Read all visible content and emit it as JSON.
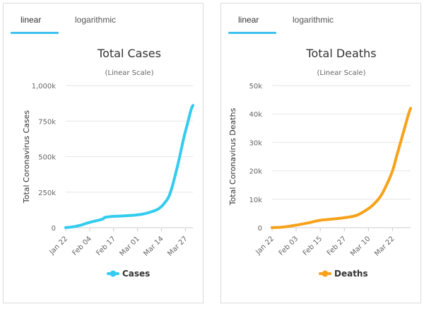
{
  "tabs": {
    "linear": "linear",
    "logarithmic": "logarithmic"
  },
  "chart_data": [
    {
      "type": "line",
      "title": "Total Cases",
      "subtitle": "(Linear Scale)",
      "ylabel": "Total Coronavirus Cases",
      "xlabel": "",
      "ylim": [
        0,
        1000000
      ],
      "yticks": [
        0,
        250000,
        500000,
        750000,
        1000000
      ],
      "ytick_labels": [
        "0",
        "250k",
        "500k",
        "750k",
        "1,000k"
      ],
      "xlim": [
        0,
        69
      ],
      "xticks": [
        0,
        13,
        26,
        39,
        52,
        65
      ],
      "xtick_labels": [
        "Jan 22",
        "Feb 04",
        "Feb 17",
        "Mar 01",
        "Mar 14",
        "Mar 27"
      ],
      "grid": true,
      "legend": "bottom",
      "series": [
        {
          "name": "Cases",
          "color": "#33ccee",
          "x": [
            0,
            4,
            8,
            12,
            16,
            20,
            21,
            23,
            26,
            30,
            34,
            38,
            42,
            46,
            50,
            52,
            54,
            56,
            58,
            60,
            62,
            64,
            66,
            68,
            69
          ],
          "y": [
            580,
            6000,
            17000,
            34000,
            47000,
            60000,
            71000,
            76000,
            80000,
            82000,
            85000,
            89000,
            96000,
            110000,
            130000,
            150000,
            180000,
            220000,
            300000,
            400000,
            510000,
            630000,
            730000,
            830000,
            860000
          ]
        }
      ]
    },
    {
      "type": "line",
      "title": "Total Deaths",
      "subtitle": "(Linear Scale)",
      "ylabel": "Total Coronavirus Deaths",
      "xlabel": "",
      "ylim": [
        0,
        50000
      ],
      "yticks": [
        0,
        10000,
        20000,
        30000,
        40000,
        50000
      ],
      "ytick_labels": [
        "0",
        "10k",
        "20k",
        "30k",
        "40k",
        "50k"
      ],
      "xlim": [
        0,
        69
      ],
      "xticks": [
        0,
        12,
        24,
        36,
        48,
        60
      ],
      "xtick_labels": [
        "Jan 22",
        "Feb 03",
        "Feb 15",
        "Feb 27",
        "Mar 10",
        "Mar 22"
      ],
      "grid": true,
      "legend": "bottom",
      "series": [
        {
          "name": "Deaths",
          "color": "#f7a21b",
          "x": [
            0,
            6,
            12,
            18,
            24,
            30,
            36,
            42,
            46,
            50,
            54,
            57,
            60,
            62,
            64,
            66,
            68,
            69
          ],
          "y": [
            17,
            250,
            900,
            1700,
            2600,
            3000,
            3500,
            4300,
            5800,
            7800,
            11000,
            15000,
            20000,
            25000,
            30000,
            35000,
            40000,
            42000
          ]
        }
      ]
    }
  ]
}
